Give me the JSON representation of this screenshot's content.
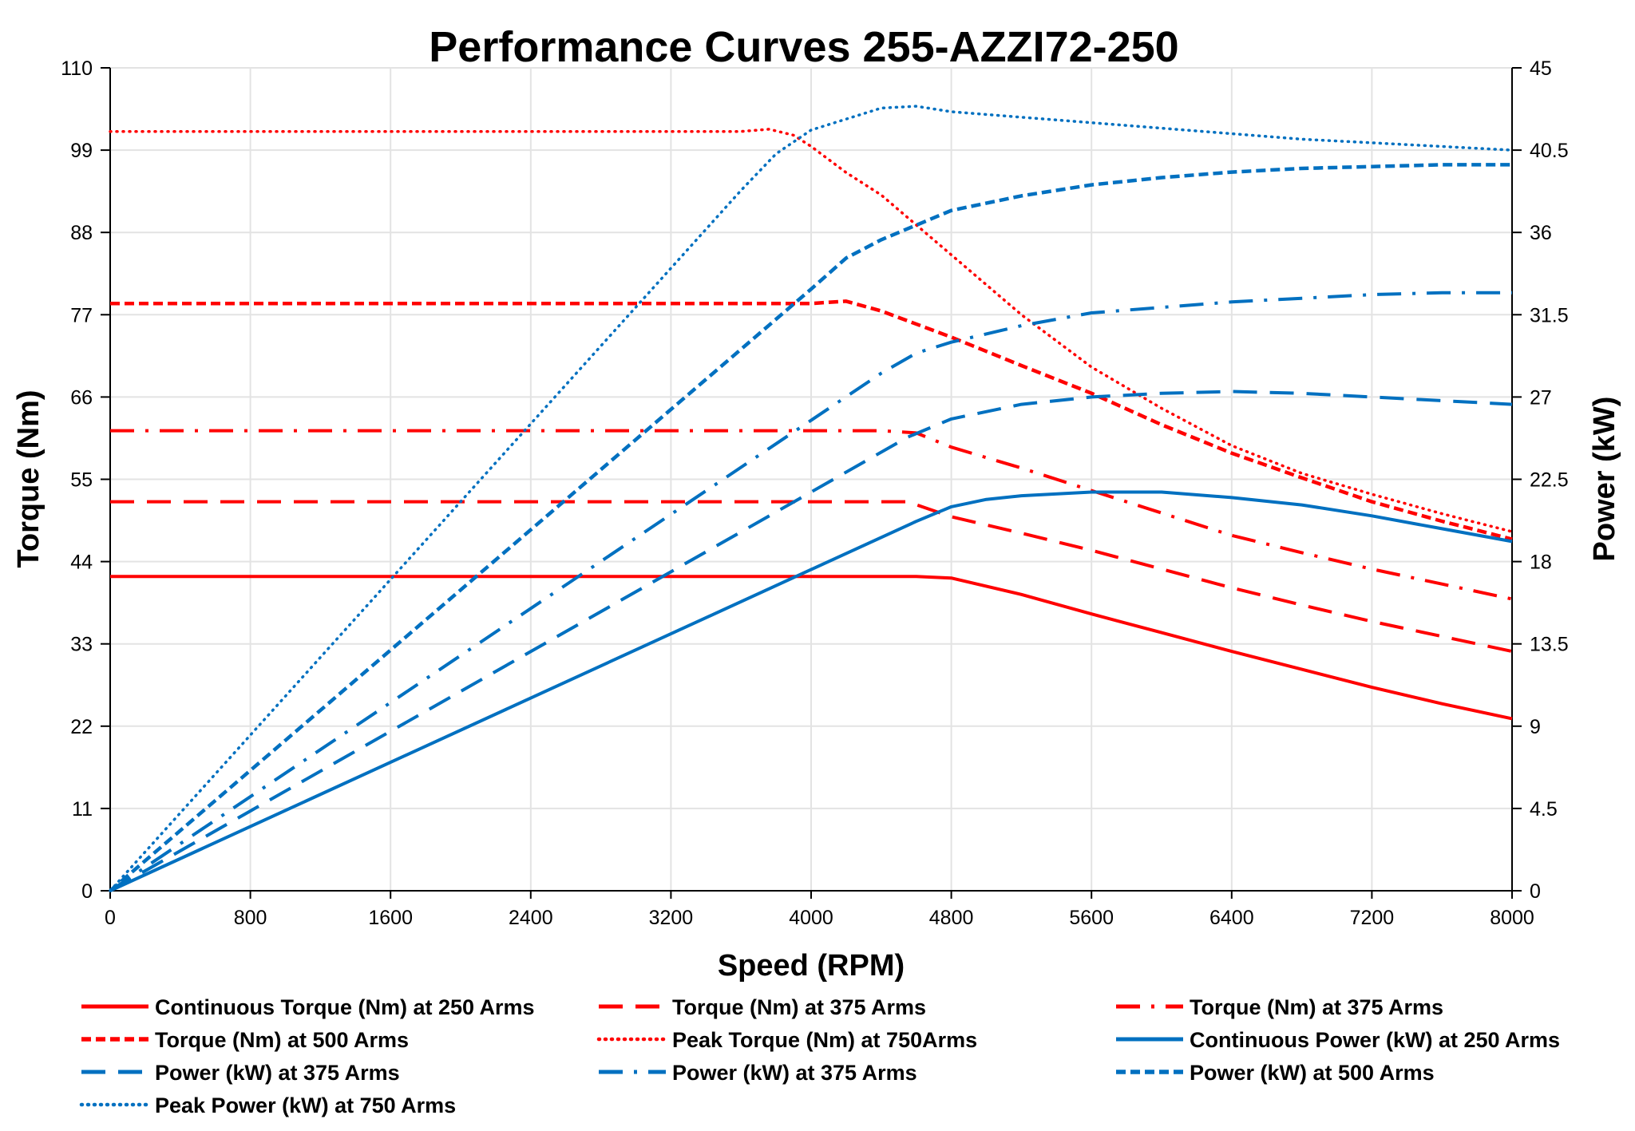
{
  "chart_data": {
    "type": "line",
    "title": "Performance Curves 255-AZZI72-250",
    "xlabel": "Speed (RPM)",
    "ylabel": "Torque (Nm)",
    "y2label": "Power (kW)",
    "xlim": [
      0,
      8000
    ],
    "ylim": [
      0,
      110
    ],
    "y2lim": [
      0,
      45
    ],
    "xticks": [
      0,
      800,
      1600,
      2400,
      3200,
      4000,
      4800,
      5600,
      6400,
      7200,
      8000
    ],
    "yticks": [
      0,
      11,
      22,
      33,
      44,
      55,
      66,
      77,
      88,
      99,
      110
    ],
    "y2ticks": [
      "0",
      "4.5",
      "9",
      "13.5",
      "18",
      "22.5",
      "27",
      "31.5",
      "36",
      "40.5",
      "45"
    ],
    "grid": true,
    "legend_position": "bottom",
    "colors": {
      "torque": "#ff0000",
      "power": "#0070c0"
    },
    "series": [
      {
        "name": "Continuous Torque (Nm) at 250 Arms",
        "axis": "left",
        "color": "#ff0000",
        "style": "solid",
        "x": [
          0,
          4600,
          4800,
          5200,
          5600,
          6000,
          6400,
          6800,
          7200,
          7600,
          8000
        ],
        "y": [
          42,
          42,
          41.8,
          39.6,
          37,
          34.5,
          32,
          29.6,
          27.2,
          25,
          23
        ]
      },
      {
        "name": "Torque (Nm) at 375 Arms",
        "axis": "left",
        "color": "#ff0000",
        "style": "longdash",
        "x": [
          0,
          4550,
          4800,
          5200,
          5600,
          6000,
          6400,
          6800,
          7200,
          7600,
          8000
        ],
        "y": [
          52,
          52,
          50,
          47.8,
          45.5,
          43,
          40.5,
          38.2,
          36,
          34,
          32
        ]
      },
      {
        "name": "Torque (Nm) at 375 Arms",
        "axis": "left",
        "color": "#ff0000",
        "style": "dashdot",
        "x": [
          0,
          4400,
          4600,
          4800,
          5200,
          5600,
          6000,
          6400,
          6800,
          7200,
          7600,
          8000
        ],
        "y": [
          61.5,
          61.5,
          61.2,
          59.3,
          56.5,
          53.5,
          50.5,
          47.5,
          45.2,
          43,
          41,
          39
        ]
      },
      {
        "name": "Torque (Nm) at 500 Arms",
        "axis": "left",
        "color": "#ff0000",
        "style": "dash",
        "x": [
          0,
          4000,
          4200,
          4400,
          4800,
          5200,
          5600,
          6000,
          6400,
          6800,
          7200,
          7600,
          8000
        ],
        "y": [
          78.5,
          78.5,
          78.8,
          77.5,
          74,
          70.2,
          66.5,
          62.3,
          58.5,
          55.2,
          52,
          49.4,
          47
        ]
      },
      {
        "name": "Peak Torque (Nm) at 750Arms",
        "axis": "left",
        "color": "#ff0000",
        "style": "dot",
        "x": [
          0,
          3600,
          3760,
          3900,
          4000,
          4200,
          4400,
          4800,
          5200,
          5600,
          6000,
          6400,
          6800,
          7200,
          7600,
          8000
        ],
        "y": [
          101.5,
          101.5,
          101.8,
          101,
          99.5,
          96,
          93,
          85,
          77,
          70,
          64.5,
          59.5,
          55.8,
          53,
          50.4,
          48
        ]
      },
      {
        "name": "Continuous Power (kW) at 250 Arms",
        "axis": "right",
        "color": "#0070c0",
        "style": "solid",
        "x": [
          0,
          4600,
          4800,
          5000,
          5200,
          5600,
          6000,
          6400,
          6800,
          7200,
          7600,
          8000
        ],
        "y": [
          0,
          20.2,
          21.0,
          21.4,
          21.6,
          21.8,
          21.8,
          21.5,
          21.1,
          20.5,
          19.8,
          19.1
        ]
      },
      {
        "name": "Power (kW) at 375 Arms",
        "axis": "right",
        "color": "#0070c0",
        "style": "longdash",
        "x": [
          0,
          4550,
          4800,
          5200,
          5600,
          6000,
          6400,
          6800,
          7200,
          7600,
          8000
        ],
        "y": [
          0,
          24.8,
          25.8,
          26.6,
          27.0,
          27.2,
          27.3,
          27.2,
          27.0,
          26.8,
          26.6
        ]
      },
      {
        "name": "Power (kW) at 375 Arms",
        "axis": "right",
        "color": "#0070c0",
        "style": "dashdot",
        "x": [
          0,
          4400,
          4600,
          4800,
          5200,
          5600,
          6000,
          6400,
          6800,
          7200,
          7600,
          8000
        ],
        "y": [
          0,
          28.3,
          29.4,
          30.0,
          30.9,
          31.6,
          31.9,
          32.2,
          32.4,
          32.6,
          32.7,
          32.7
        ]
      },
      {
        "name": "Power (kW) at 500 Arms",
        "axis": "right",
        "color": "#0070c0",
        "style": "dash",
        "x": [
          0,
          4000,
          4200,
          4400,
          4800,
          5200,
          5600,
          6000,
          6400,
          6800,
          7200,
          7600,
          8000
        ],
        "y": [
          0,
          32.9,
          34.6,
          35.6,
          37.2,
          38.0,
          38.6,
          39.0,
          39.3,
          39.5,
          39.6,
          39.7,
          39.7
        ]
      },
      {
        "name": "Peak Power (kW) at 750 Arms",
        "axis": "right",
        "color": "#0070c0",
        "style": "dot",
        "x": [
          0,
          3600,
          3800,
          4000,
          4200,
          4400,
          4600,
          4800,
          5200,
          5600,
          6000,
          6400,
          6800,
          7200,
          7600,
          8000
        ],
        "y": [
          0,
          38.3,
          40.3,
          41.6,
          42.2,
          42.8,
          42.9,
          42.6,
          42.3,
          42.0,
          41.7,
          41.4,
          41.1,
          40.9,
          40.7,
          40.5
        ]
      }
    ]
  }
}
